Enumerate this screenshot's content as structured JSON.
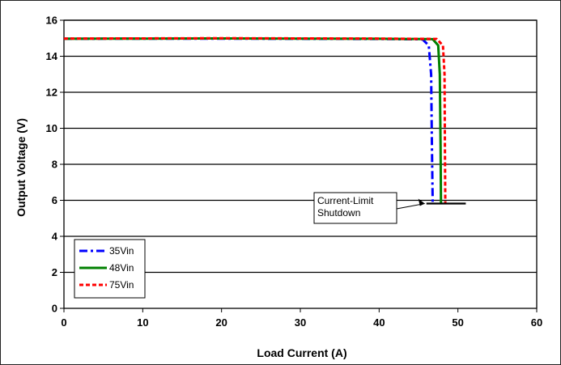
{
  "chart_data": {
    "type": "line",
    "title": "",
    "xlabel": "Load Current (A)",
    "ylabel": "Output Voltage (V)",
    "xlim": [
      0,
      60
    ],
    "ylim": [
      0,
      16
    ],
    "xticks": [
      0,
      10,
      20,
      30,
      40,
      50,
      60
    ],
    "yticks": [
      0,
      2,
      4,
      6,
      8,
      10,
      12,
      14,
      16
    ],
    "grid": "horizontal",
    "legend_position": "bottom-left",
    "series": [
      {
        "name": "35Vin",
        "color": "#0000ff",
        "style": "dash-dot",
        "x": [
          0,
          10,
          20,
          30,
          40,
          45.5,
          46.3,
          46.6,
          46.7,
          46.8
        ],
        "y": [
          14.97,
          14.98,
          14.98,
          14.97,
          14.96,
          14.94,
          14.6,
          13.0,
          9.0,
          5.8
        ]
      },
      {
        "name": "48Vin",
        "color": "#008000",
        "style": "solid",
        "x": [
          0,
          10,
          20,
          30,
          40,
          46.8,
          47.5,
          47.7,
          47.8,
          47.85
        ],
        "y": [
          14.97,
          14.98,
          14.99,
          14.98,
          14.97,
          14.95,
          14.6,
          13.0,
          9.0,
          5.8
        ]
      },
      {
        "name": "75Vin",
        "color": "#ff0000",
        "style": "dashed",
        "x": [
          0,
          10,
          20,
          30,
          40,
          47.3,
          48.1,
          48.3,
          48.35,
          48.4
        ],
        "y": [
          14.98,
          14.99,
          15.0,
          14.99,
          14.98,
          14.96,
          14.6,
          13.0,
          9.0,
          5.8
        ]
      }
    ],
    "annotations": [
      {
        "text_lines": [
          "Current-Limit",
          "Shutdown"
        ],
        "point": [
          46,
          5.82
        ],
        "segment_x": [
          46,
          51
        ],
        "segment_y": 5.82
      }
    ]
  }
}
